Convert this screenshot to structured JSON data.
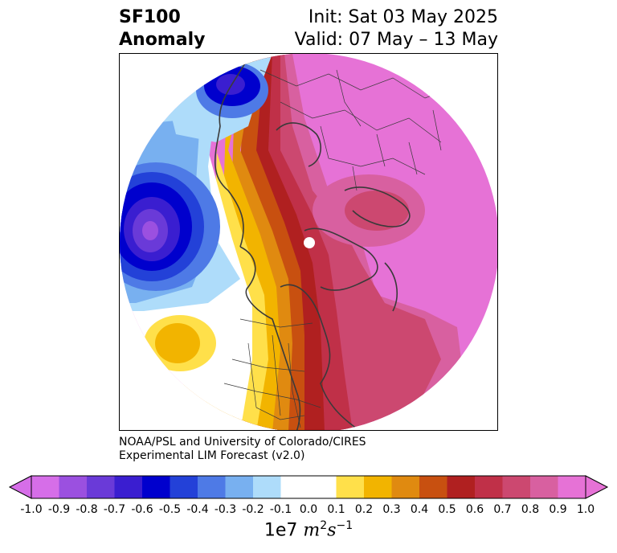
{
  "title": {
    "variable": "SF100",
    "type": "Anomaly",
    "init": "Init: Sat 03 May 2025",
    "valid": "Valid: 07 May – 13 May"
  },
  "credit": {
    "line1": "NOAA/PSL and University of Colorado/CIRES",
    "line2": "Experimental LIM Forecast (v2.0)"
  },
  "colorbar": {
    "ticks": [
      "-1.0",
      "-0.9",
      "-0.8",
      "-0.7",
      "-0.6",
      "-0.5",
      "-0.4",
      "-0.3",
      "-0.2",
      "-0.1",
      "0.0",
      "0.1",
      "0.2",
      "0.3",
      "0.4",
      "0.5",
      "0.6",
      "0.7",
      "0.8",
      "0.9",
      "1.0"
    ],
    "colors": [
      "#d66ee8",
      "#9b50e0",
      "#6a3ad8",
      "#3a1ed0",
      "#0000cd",
      "#2341d8",
      "#4e7ae6",
      "#78b0f0",
      "#aedcfa",
      "#ffffff",
      "#ffffff",
      "#ffe04a",
      "#f2b400",
      "#e08a10",
      "#c85010",
      "#b02020",
      "#c03048",
      "#cc4870",
      "#d860a0",
      "#e672d6"
    ],
    "units_prefix": "1e7",
    "units_m": "m",
    "units_m_exp": "2",
    "units_s": "s",
    "units_s_exp": "−1"
  }
}
